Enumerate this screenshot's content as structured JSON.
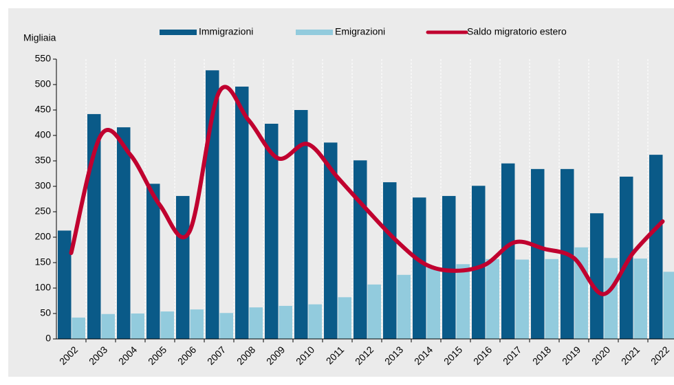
{
  "chart_data": {
    "type": "bar",
    "y_label": "Migliaia",
    "categories": [
      "2002",
      "2003",
      "2004",
      "2005",
      "2006",
      "2007",
      "2008",
      "2009",
      "2010",
      "2011",
      "2012",
      "2013",
      "2014",
      "2015",
      "2016",
      "2017",
      "2018",
      "2019",
      "2020",
      "2021",
      "2022"
    ],
    "series": [
      {
        "name": "Immigrazioni",
        "type": "bar",
        "color": "#0a5a88",
        "values": [
          213,
          442,
          416,
          305,
          281,
          528,
          496,
          423,
          450,
          386,
          351,
          308,
          278,
          281,
          301,
          345,
          334,
          334,
          247,
          319,
          362
        ]
      },
      {
        "name": "Emigrazioni",
        "type": "bar",
        "color": "#92cbdd",
        "values": [
          42,
          49,
          50,
          54,
          58,
          51,
          62,
          65,
          68,
          82,
          107,
          126,
          140,
          147,
          157,
          156,
          157,
          180,
          159,
          158,
          132
        ]
      },
      {
        "name": "Saldo migratorio estero",
        "type": "line",
        "color": "#c0002f",
        "values": [
          169,
          400,
          362,
          263,
          211,
          485,
          430,
          355,
          383,
          318,
          254,
          193,
          146,
          134,
          146,
          190,
          177,
          159,
          88,
          169,
          231
        ]
      }
    ],
    "ylim": [
      0,
      550
    ],
    "yticks": [
      0,
      50,
      100,
      150,
      200,
      250,
      300,
      350,
      400,
      450,
      500,
      550
    ],
    "grid": true,
    "legend": "top"
  }
}
